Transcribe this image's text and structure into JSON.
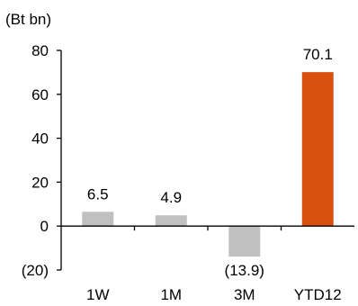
{
  "chart_data": {
    "type": "bar",
    "unit_label": "(Bt bn)",
    "title": "",
    "xlabel": "",
    "ylabel": "",
    "categories": [
      "1W",
      "1M",
      "3M",
      "YTD12"
    ],
    "values": [
      6.5,
      4.9,
      -13.9,
      70.1
    ],
    "data_labels": [
      "6.5",
      "4.9",
      "(13.9)",
      "70.1"
    ],
    "ylim": [
      -20,
      80
    ],
    "yticks": [
      80,
      60,
      40,
      20,
      0,
      -20
    ],
    "ytick_labels": [
      "80",
      "60",
      "40",
      "20",
      "0",
      "(20)"
    ],
    "grid": false,
    "legend": "none",
    "colors": {
      "default_bar": "#c0c0c0",
      "highlight_bar": "#d9500f",
      "highlight_category": "YTD12"
    }
  }
}
